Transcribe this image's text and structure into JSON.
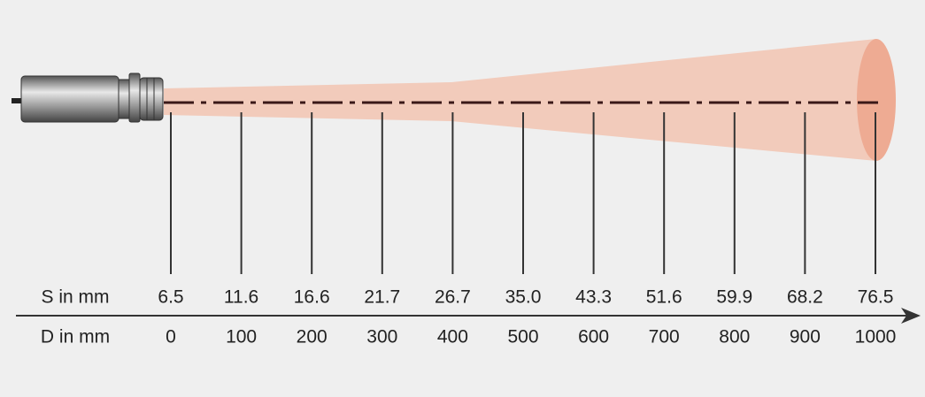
{
  "labels": {
    "spot": "S in mm",
    "distance": "D in mm"
  },
  "measurements": [
    {
      "spot": "6.5",
      "distance": "0"
    },
    {
      "spot": "11.6",
      "distance": "100"
    },
    {
      "spot": "16.6",
      "distance": "200"
    },
    {
      "spot": "21.7",
      "distance": "300"
    },
    {
      "spot": "26.7",
      "distance": "400"
    },
    {
      "spot": "35.0",
      "distance": "500"
    },
    {
      "spot": "43.3",
      "distance": "600"
    },
    {
      "spot": "51.6",
      "distance": "700"
    },
    {
      "spot": "59.9",
      "distance": "800"
    },
    {
      "spot": "68.2",
      "distance": "900"
    },
    {
      "spot": "76.5",
      "distance": "1000"
    }
  ]
}
